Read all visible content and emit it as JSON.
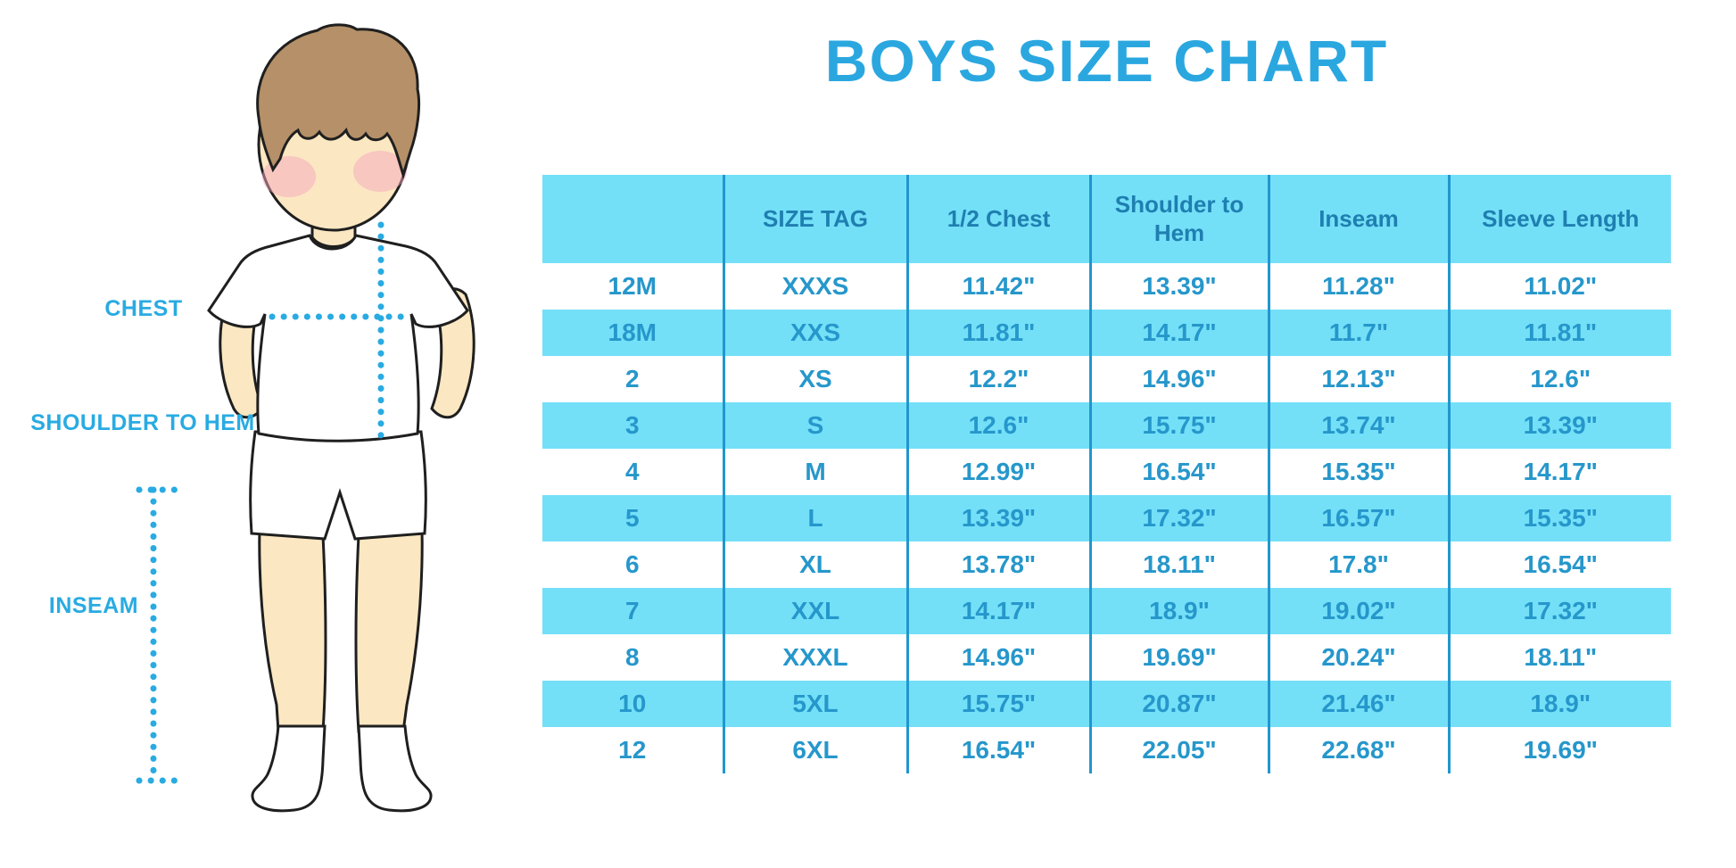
{
  "page": {
    "title": "BOYS SIZE CHART"
  },
  "diagram": {
    "labels": {
      "chest": "CHEST",
      "shoulder_to_hem": "SHOULDER TO HEM",
      "inseam": "INSEAM"
    }
  },
  "table": {
    "columns": [
      "",
      "SIZE TAG",
      "1/2 Chest",
      "Shoulder to Hem",
      "Inseam",
      "Sleeve Length"
    ],
    "rows": [
      [
        "12M",
        "XXXS",
        "11.42\"",
        "13.39\"",
        "11.28\"",
        "11.02\""
      ],
      [
        "18M",
        "XXS",
        "11.81\"",
        "14.17\"",
        "11.7\"",
        "11.81\""
      ],
      [
        "2",
        "XS",
        "12.2\"",
        "14.96\"",
        "12.13\"",
        "12.6\""
      ],
      [
        "3",
        "S",
        "12.6\"",
        "15.75\"",
        "13.74\"",
        "13.39\""
      ],
      [
        "4",
        "M",
        "12.99\"",
        "16.54\"",
        "15.35\"",
        "14.17\""
      ],
      [
        "5",
        "L",
        "13.39\"",
        "17.32\"",
        "16.57\"",
        "15.35\""
      ],
      [
        "6",
        "XL",
        "13.78\"",
        "18.11\"",
        "17.8\"",
        "16.54\""
      ],
      [
        "7",
        "XXL",
        "14.17\"",
        "18.9\"",
        "19.02\"",
        "17.32\""
      ],
      [
        "8",
        "XXXL",
        "14.96\"",
        "19.69\"",
        "20.24\"",
        "18.11\""
      ],
      [
        "10",
        "5XL",
        "15.75\"",
        "20.87\"",
        "21.46\"",
        "18.9\""
      ],
      [
        "12",
        "6XL",
        "16.54\"",
        "22.05\"",
        "22.68\"",
        "19.69\""
      ]
    ]
  },
  "colors": {
    "accent": "#29ABE2",
    "titlecolor": "#2BA7E0",
    "band": "#73E0F8",
    "headertext": "#1F7FB0",
    "celltext": "#2697CB",
    "divider": "#2196CF",
    "skin": "#FBE7C2",
    "hair": "#B59068",
    "blush": "#F3A8BD",
    "outline": "#1F1F1F"
  }
}
